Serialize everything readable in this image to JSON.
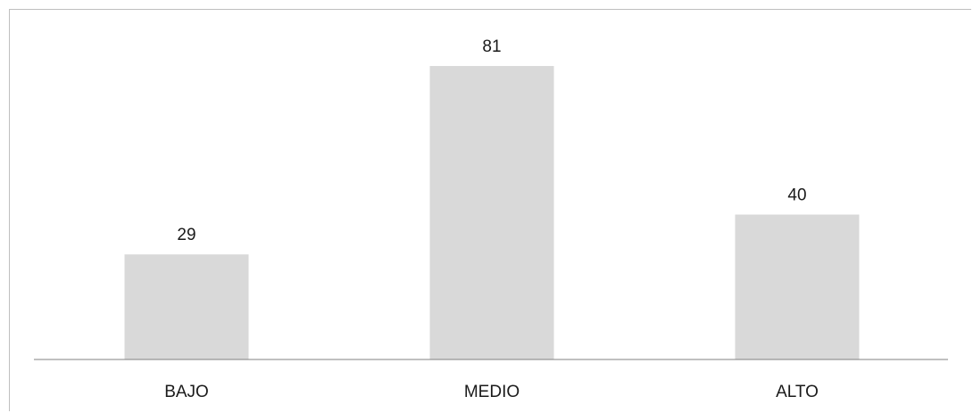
{
  "chart_data": {
    "type": "bar",
    "categories": [
      "BAJO",
      "MEDIO",
      "ALTO"
    ],
    "values": [
      29,
      81,
      40
    ],
    "title": "",
    "xlabel": "",
    "ylabel": "",
    "ylim": [
      0,
      81
    ],
    "grid": false,
    "legend": "none",
    "bar_color": "#d9d9d9",
    "axis_color": "#808080"
  }
}
